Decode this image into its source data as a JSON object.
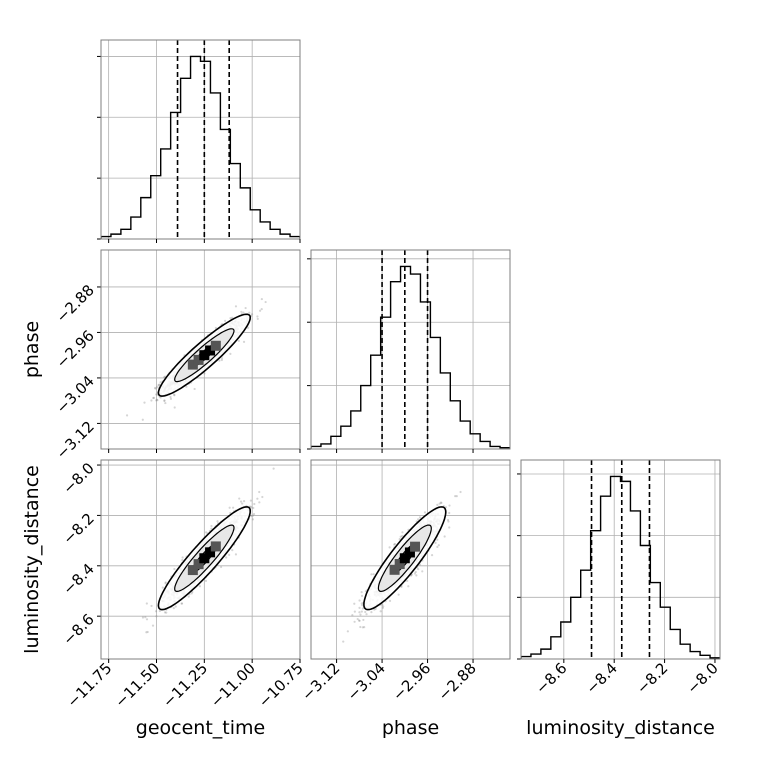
{
  "chart_data": {
    "type": "corner",
    "parameters": [
      "geocent_time",
      "phase",
      "luminosity_distance"
    ],
    "axis_labels": [
      "geocent_time",
      "phase",
      "luminosity_distance"
    ],
    "ranges": [
      [
        -11.79,
        -10.75
      ],
      [
        -3.165,
        -2.815
      ],
      [
        -8.77,
        -7.98
      ]
    ],
    "ticks": [
      [
        "−11.75",
        "−11.50",
        "−11.25",
        "−11.00",
        "−10.75"
      ],
      [
        "−3.12",
        "−3.04",
        "−2.96",
        "−2.88"
      ],
      [
        "−8.6",
        "−8.4",
        "−8.2",
        "−8.0"
      ]
    ],
    "tick_values": [
      [
        -11.75,
        -11.5,
        -11.25,
        -11.0,
        -10.75
      ],
      [
        -3.12,
        -3.04,
        -2.96,
        -2.88
      ],
      [
        -8.6,
        -8.4,
        -8.2,
        -8.0
      ]
    ],
    "quantiles": [
      [
        -11.39,
        -11.25,
        -11.12
      ],
      [
        -3.04,
        -3.0,
        -2.96
      ],
      [
        -8.49,
        -8.37,
        -8.26
      ]
    ],
    "histograms": [
      [
        1,
        2,
        4,
        9,
        17,
        26,
        37,
        52,
        66,
        75,
        73,
        60,
        45,
        31,
        21,
        12,
        7,
        4,
        2,
        1
      ],
      [
        1,
        2,
        5,
        9,
        15,
        25,
        37,
        52,
        66,
        72,
        69,
        58,
        44,
        30,
        19,
        11,
        6,
        3,
        1,
        0.5
      ],
      [
        1,
        2,
        4,
        9,
        15,
        25,
        36,
        52,
        66,
        74,
        72,
        60,
        46,
        31,
        21,
        12,
        6,
        3,
        1.5,
        0.5
      ]
    ],
    "correlation": [
      [
        1.0,
        0.92,
        0.92
      ],
      [
        0.92,
        1.0,
        0.9
      ],
      [
        0.92,
        0.9,
        1.0
      ]
    ],
    "means": [
      -11.25,
      -3.0,
      -8.37
    ],
    "stds": [
      0.1,
      0.03,
      0.085
    ],
    "grid": true,
    "colors": {
      "lines": "#000000",
      "points": "#888888",
      "grid": "#b0b0b0",
      "frame": "#7f7f7f"
    }
  }
}
